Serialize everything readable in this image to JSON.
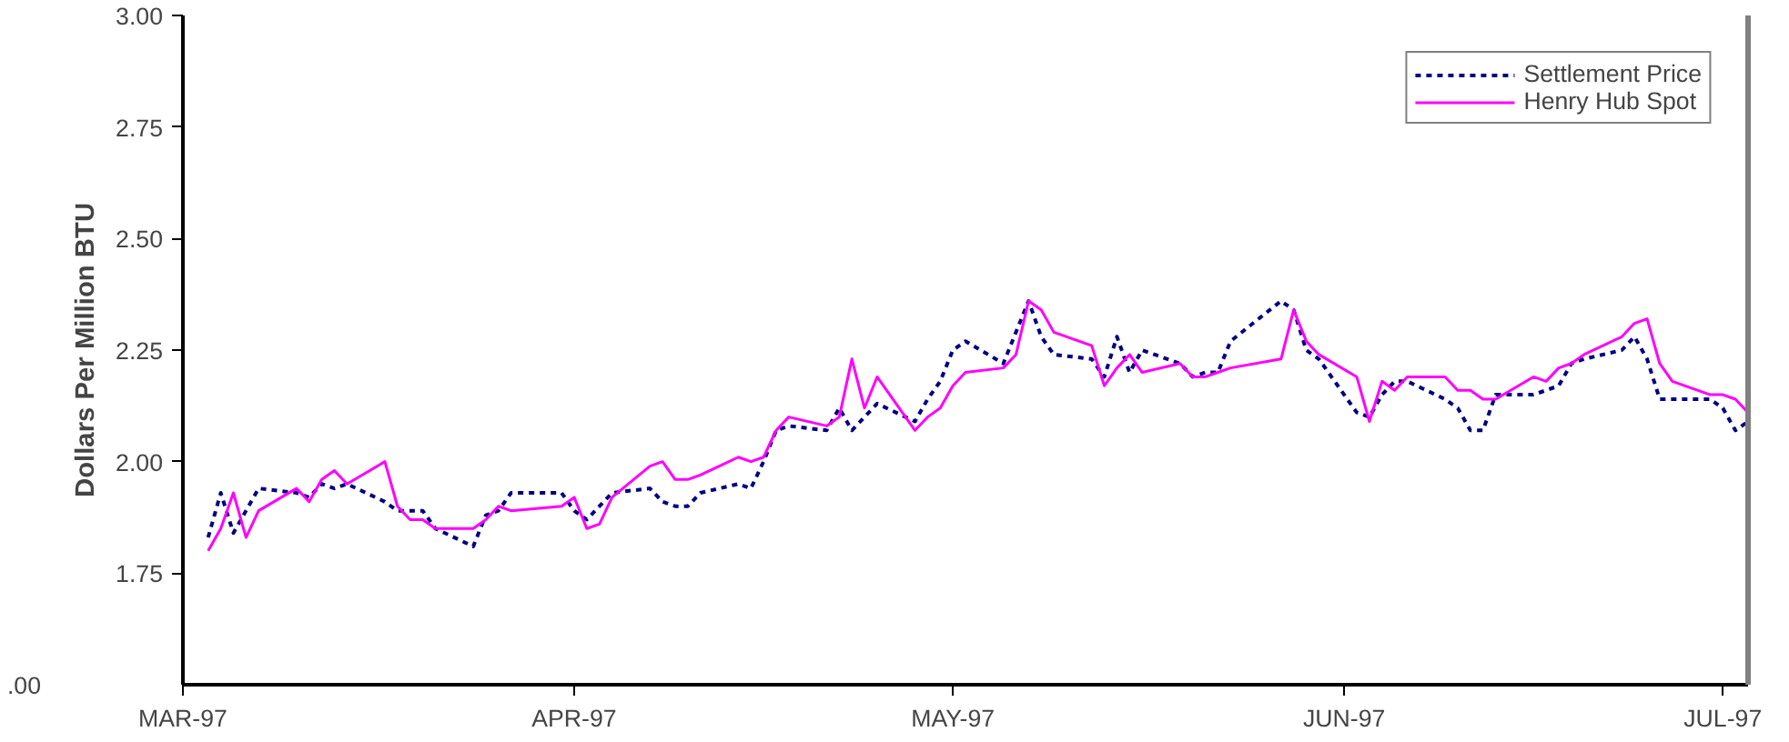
{
  "chart_data": {
    "type": "line",
    "ylabel": "Dollars Per Million BTU",
    "annotations": [
      ".00"
    ],
    "x": [
      "1997-03-03",
      "1997-03-04",
      "1997-03-05",
      "1997-03-06",
      "1997-03-07",
      "1997-03-10",
      "1997-03-11",
      "1997-03-12",
      "1997-03-13",
      "1997-03-14",
      "1997-03-17",
      "1997-03-18",
      "1997-03-19",
      "1997-03-20",
      "1997-03-21",
      "1997-03-24",
      "1997-03-25",
      "1997-03-26",
      "1997-03-27",
      "1997-03-31",
      "1997-04-01",
      "1997-04-02",
      "1997-04-03",
      "1997-04-04",
      "1997-04-07",
      "1997-04-08",
      "1997-04-09",
      "1997-04-10",
      "1997-04-11",
      "1997-04-14",
      "1997-04-15",
      "1997-04-16",
      "1997-04-17",
      "1997-04-18",
      "1997-04-21",
      "1997-04-22",
      "1997-04-23",
      "1997-04-24",
      "1997-04-25",
      "1997-04-28",
      "1997-04-29",
      "1997-04-30",
      "1997-05-01",
      "1997-05-02",
      "1997-05-05",
      "1997-05-06",
      "1997-05-07",
      "1997-05-08",
      "1997-05-09",
      "1997-05-12",
      "1997-05-13",
      "1997-05-14",
      "1997-05-15",
      "1997-05-16",
      "1997-05-19",
      "1997-05-20",
      "1997-05-21",
      "1997-05-22",
      "1997-05-23",
      "1997-05-27",
      "1997-05-28",
      "1997-05-29",
      "1997-05-30",
      "1997-06-02",
      "1997-06-03",
      "1997-06-04",
      "1997-06-05",
      "1997-06-06",
      "1997-06-09",
      "1997-06-10",
      "1997-06-11",
      "1997-06-12",
      "1997-06-13",
      "1997-06-16",
      "1997-06-17",
      "1997-06-18",
      "1997-06-19",
      "1997-06-20",
      "1997-06-23",
      "1997-06-24",
      "1997-06-25",
      "1997-06-26",
      "1997-06-27",
      "1997-06-30",
      "1997-07-01",
      "1997-07-02",
      "1997-07-03"
    ],
    "series": [
      {
        "name": "Settlement Price",
        "color": "#000080",
        "line_style": "dashed",
        "values": [
          1.83,
          1.93,
          1.84,
          1.89,
          1.94,
          1.93,
          1.92,
          1.95,
          1.94,
          1.95,
          1.91,
          1.89,
          1.89,
          1.89,
          1.85,
          1.81,
          1.88,
          1.89,
          1.93,
          1.93,
          1.89,
          1.87,
          1.9,
          1.93,
          1.94,
          1.91,
          1.9,
          1.9,
          1.93,
          1.95,
          1.94,
          2.0,
          2.07,
          2.08,
          2.07,
          2.12,
          2.07,
          2.1,
          2.13,
          2.09,
          2.14,
          2.18,
          2.25,
          2.27,
          2.22,
          2.29,
          2.36,
          2.28,
          2.24,
          2.23,
          2.19,
          2.28,
          2.2,
          2.25,
          2.22,
          2.19,
          2.2,
          2.2,
          2.27,
          2.36,
          2.34,
          2.25,
          2.23,
          2.11,
          2.1,
          2.15,
          2.18,
          2.18,
          2.14,
          2.12,
          2.07,
          2.07,
          2.15,
          2.15,
          2.16,
          2.17,
          2.22,
          2.23,
          2.25,
          2.28,
          2.23,
          2.14,
          2.14,
          2.14,
          2.12,
          2.07,
          2.09
        ]
      },
      {
        "name": "Henry Hub Spot",
        "color": "#ff00ff",
        "line_style": "solid",
        "values": [
          1.8,
          1.85,
          1.93,
          1.83,
          1.89,
          1.94,
          1.91,
          1.96,
          1.98,
          1.95,
          2.0,
          1.9,
          1.87,
          1.87,
          1.85,
          1.85,
          1.87,
          1.9,
          1.89,
          1.9,
          1.92,
          1.85,
          1.86,
          1.92,
          1.99,
          2.0,
          1.96,
          1.96,
          1.97,
          2.01,
          2.0,
          2.01,
          2.07,
          2.1,
          2.08,
          2.1,
          2.23,
          2.12,
          2.19,
          2.07,
          2.1,
          2.12,
          2.17,
          2.2,
          2.21,
          2.24,
          2.36,
          2.34,
          2.29,
          2.26,
          2.17,
          2.21,
          2.24,
          2.2,
          2.22,
          2.19,
          2.19,
          2.2,
          2.21,
          2.23,
          2.34,
          2.27,
          2.24,
          2.19,
          2.09,
          2.18,
          2.16,
          2.19,
          2.19,
          2.16,
          2.16,
          2.14,
          2.14,
          2.19,
          2.18,
          2.21,
          2.22,
          2.24,
          2.28,
          2.31,
          2.32,
          2.22,
          2.18,
          2.15,
          2.15,
          2.14,
          2.11
        ]
      }
    ],
    "xlim": [
      "1997-03-01",
      "1997-07-03"
    ],
    "xticks": [
      {
        "value": "1997-03-01",
        "label": "MAR-97"
      },
      {
        "value": "1997-04-01",
        "label": "APR-97"
      },
      {
        "value": "1997-05-01",
        "label": "MAY-97"
      },
      {
        "value": "1997-06-01",
        "label": "JUN-97"
      },
      {
        "value": "1997-07-01",
        "label": "JUL-97"
      }
    ],
    "ylim": [
      1.5,
      3.0
    ],
    "yticks": [
      {
        "value": 1.75,
        "label": "1.75"
      },
      {
        "value": 2.0,
        "label": "2.00"
      },
      {
        "value": 2.25,
        "label": "2.25"
      },
      {
        "value": 2.5,
        "label": "2.50"
      },
      {
        "value": 2.75,
        "label": "2.75"
      },
      {
        "value": 3.0,
        "label": "3.00"
      }
    ],
    "grid": false,
    "legend": "top right",
    "marker": "none"
  }
}
